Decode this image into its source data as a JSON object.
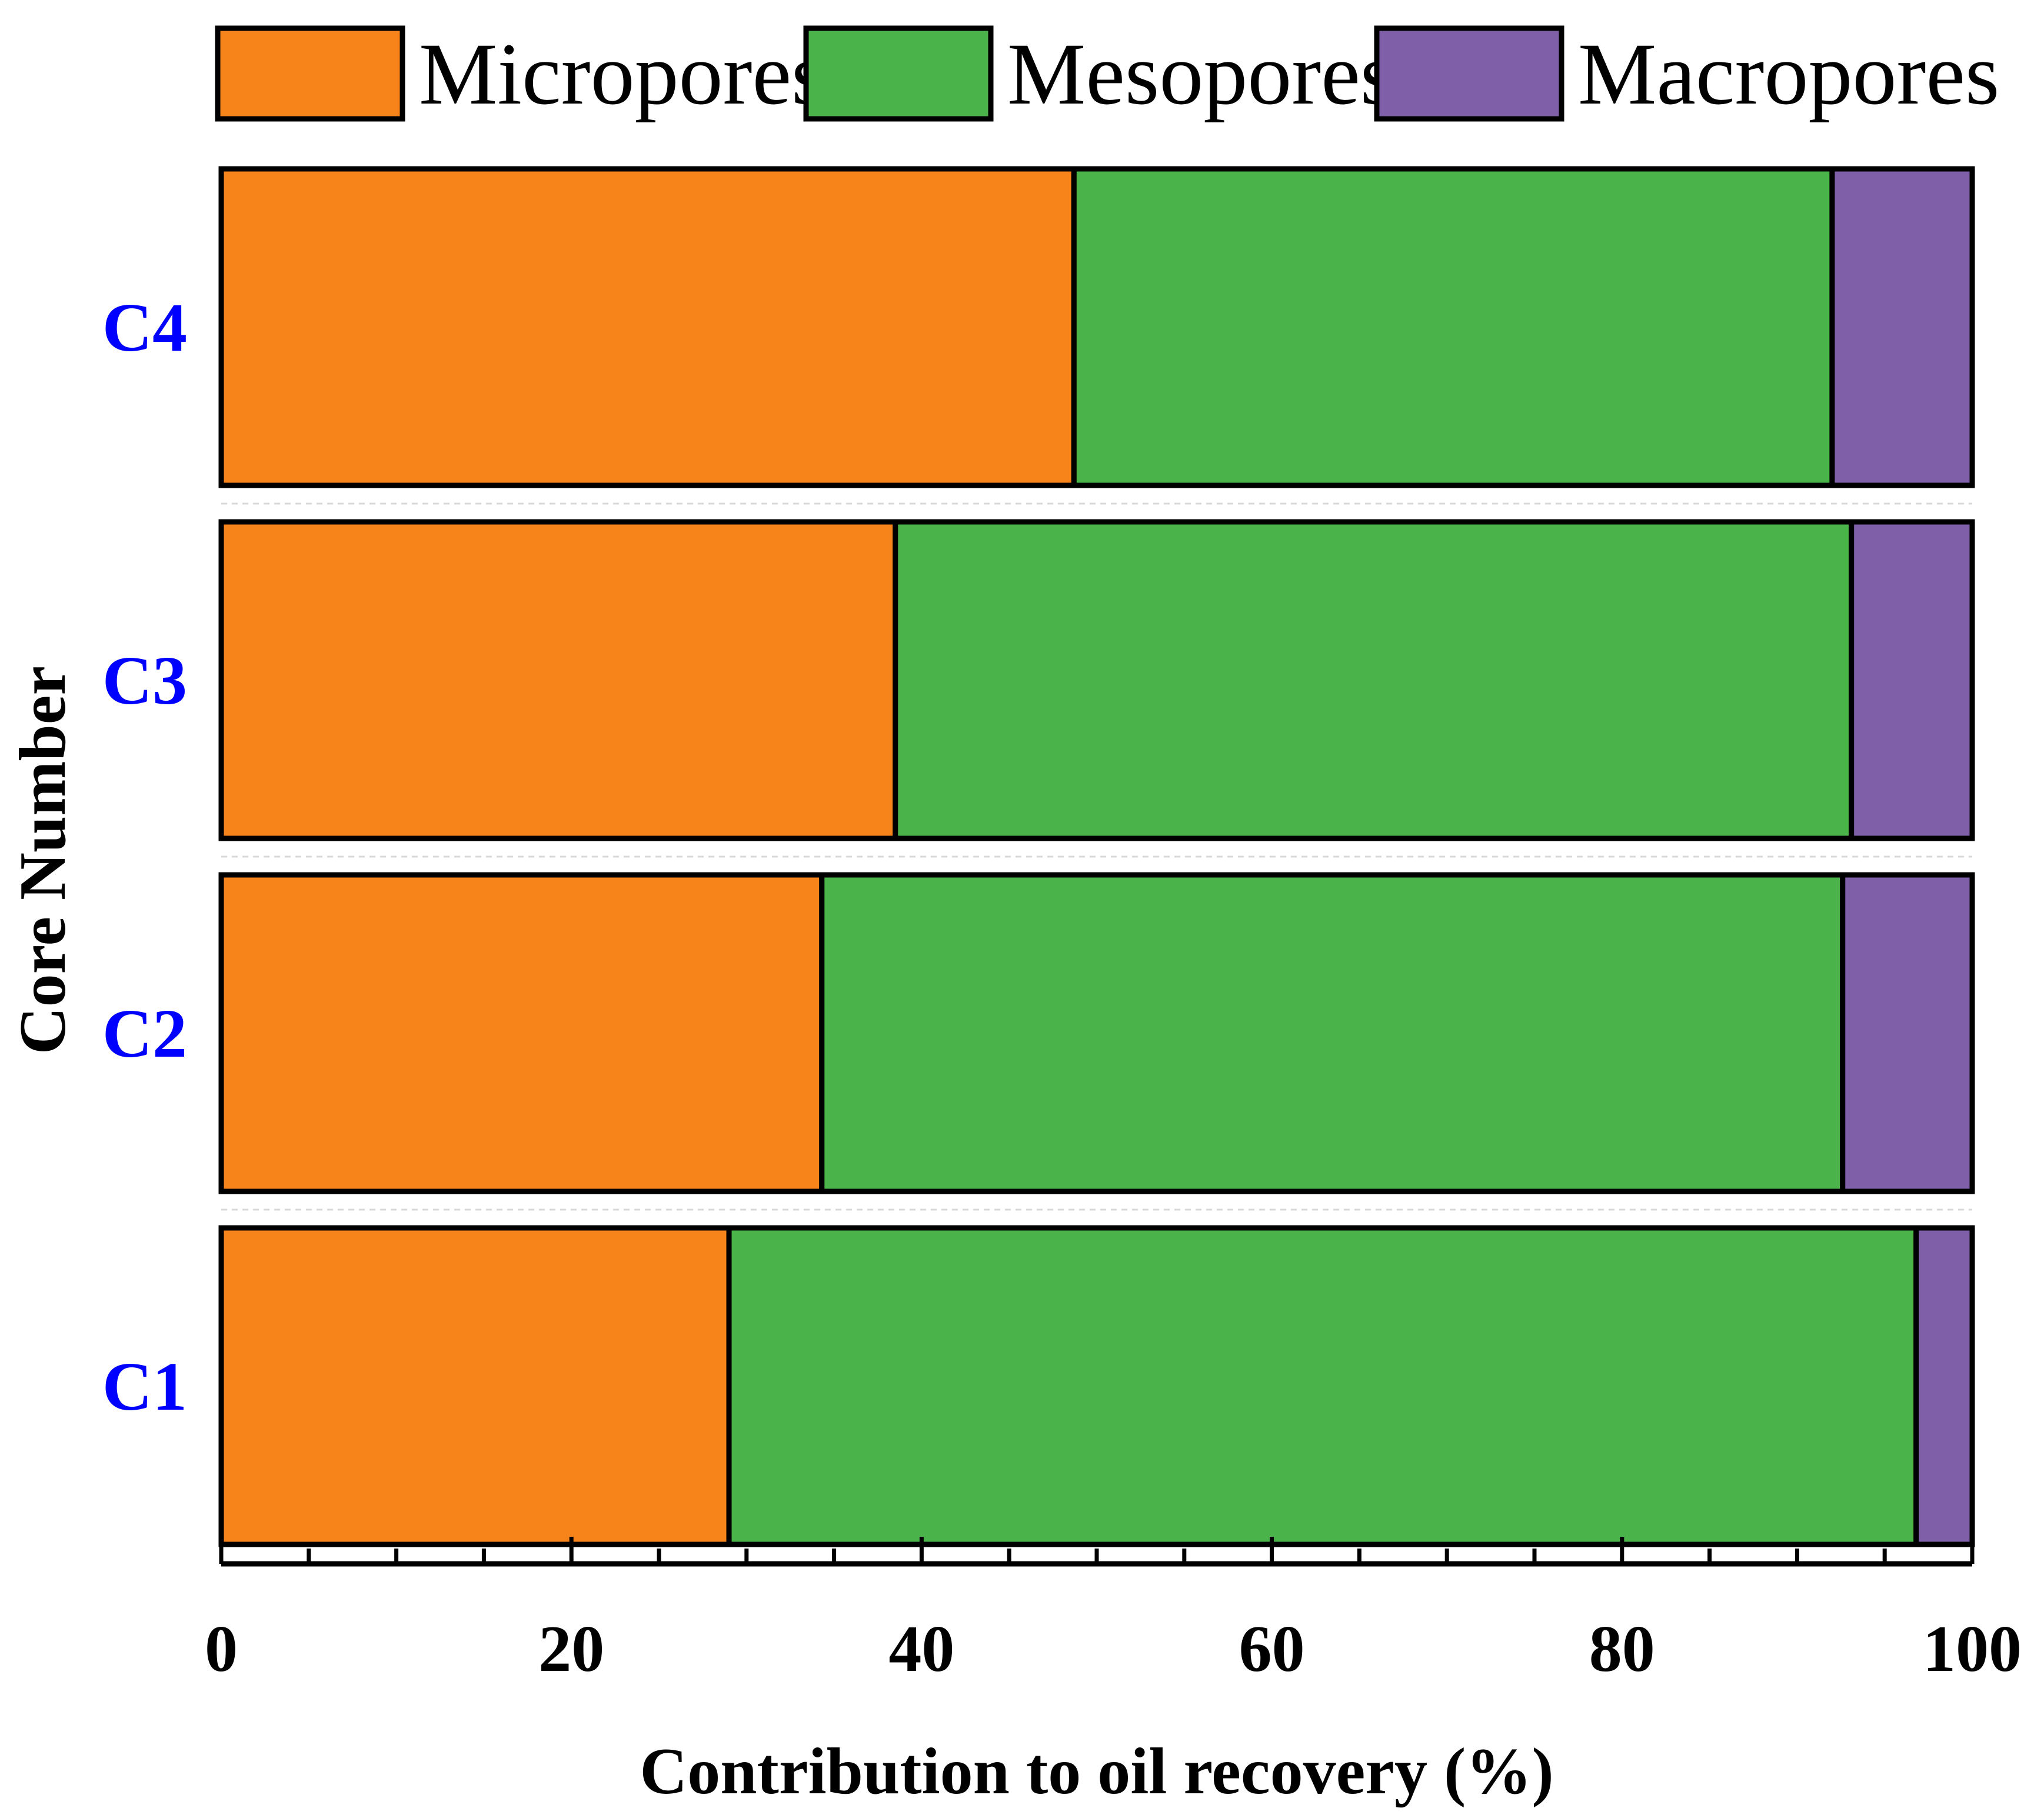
{
  "chart_data": {
    "type": "bar",
    "orientation": "horizontal",
    "stacked": true,
    "categories": [
      "C1",
      "C2",
      "C3",
      "C4"
    ],
    "series": [
      {
        "name": "Micropores",
        "color": "#f7841a",
        "values": [
          29.0,
          34.3,
          38.5,
          48.7
        ]
      },
      {
        "name": "Mesopores",
        "color": "#4ab34a",
        "values": [
          67.8,
          58.3,
          54.6,
          43.3
        ]
      },
      {
        "name": "Macropores",
        "color": "#7f5fa8",
        "values": [
          3.2,
          7.4,
          6.9,
          8.0
        ]
      }
    ],
    "xlabel": "Contribution to oil recovery (%)",
    "ylabel": "Core Number",
    "xlim": [
      0,
      100
    ],
    "xticks": [
      "0",
      "20",
      "40",
      "60",
      "80",
      "100"
    ],
    "category_label_color": "#0000ff",
    "legend_position": "top",
    "grid": false
  }
}
